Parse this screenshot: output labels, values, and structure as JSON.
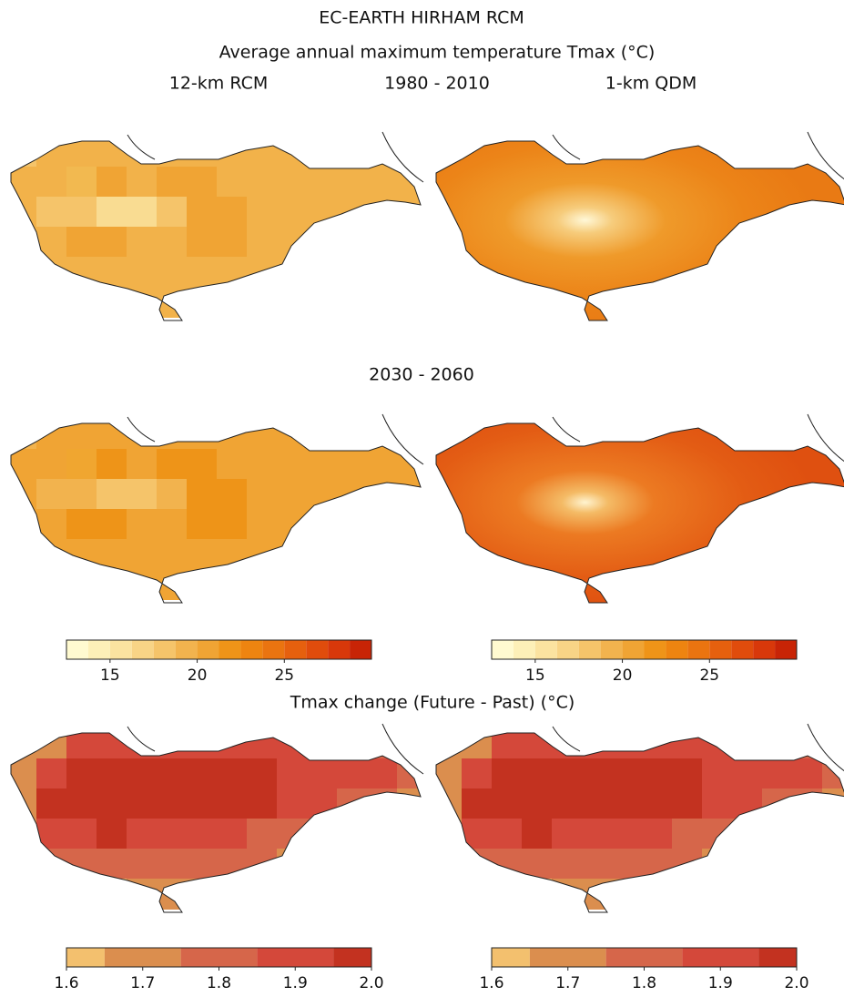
{
  "title": "EC-EARTH HIRHAM RCM",
  "subtitle": "Average annual maximum temperature Tmax (°C)",
  "column_labels": [
    "12-km RCM",
    "1-km QDM"
  ],
  "period_labels": [
    "1980 - 2010",
    "2030 - 2060"
  ],
  "change_title": "Tmax change (Future - Past) (°C)",
  "colorbars": [
    {
      "bounds": [
        12.5,
        13.75,
        15,
        16.25,
        17.5,
        18.75,
        20,
        21.25,
        22.5,
        23.75,
        25,
        26.25,
        27.5,
        28.75,
        30
      ],
      "colors": [
        "#fffad0",
        "#fdf0b8",
        "#fbe3a0",
        "#f8d486",
        "#f5c46a",
        "#f2b34e",
        "#f0a434",
        "#ef9418",
        "#ee8410",
        "#ea7410",
        "#e6600e",
        "#e04c0c",
        "#d8380a",
        "#c82406"
      ],
      "ticks": [
        15,
        20,
        25
      ]
    },
    {
      "bounds": [
        12.5,
        13.75,
        15,
        16.25,
        17.5,
        18.75,
        20,
        21.25,
        22.5,
        23.75,
        25,
        26.25,
        27.5,
        28.75,
        30
      ],
      "colors": [
        "#fffad0",
        "#fdf0b8",
        "#fbe3a0",
        "#f8d486",
        "#f5c46a",
        "#f2b34e",
        "#f0a434",
        "#ef9418",
        "#ee8410",
        "#ea7410",
        "#e6600e",
        "#e04c0c",
        "#d8380a",
        "#c82406"
      ],
      "ticks": [
        15,
        20,
        25
      ]
    },
    {
      "bounds": [
        1.6,
        1.65,
        1.75,
        1.85,
        1.95,
        2.0
      ],
      "colors": [
        "#f3c06e",
        "#db8e4e",
        "#d6664a",
        "#d4483a",
        "#c33220",
        "#8c2418"
      ],
      "ticks": [
        1.6,
        1.7,
        1.8,
        1.9,
        {
          "value": 2,
          "label": "2.0"
        }
      ]
    },
    {
      "bounds": [
        1.6,
        1.65,
        1.75,
        1.85,
        1.95,
        2.0
      ],
      "colors": [
        "#f3c06e",
        "#db8e4e",
        "#d6664a",
        "#d4483a",
        "#c33220",
        "#8c2418"
      ],
      "ticks": [
        1.6,
        1.7,
        1.8,
        1.9,
        {
          "value": 2,
          "label": "2.0"
        }
      ]
    }
  ]
}
